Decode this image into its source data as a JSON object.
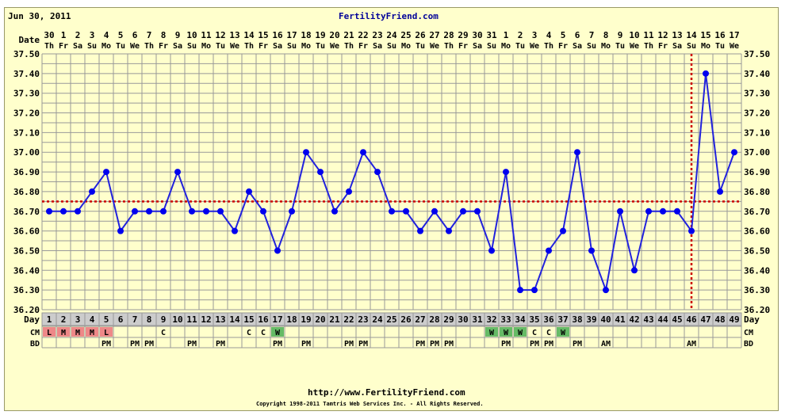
{
  "header": {
    "date": "Jun 30, 2011",
    "site": "FertilityFriend.com"
  },
  "footer": {
    "url": "http://www.FertilityFriend.com",
    "copyright": "Copyright 1998-2011 Tamtris Web Services Inc. - All Rights Reserved."
  },
  "labels": {
    "date": "Date",
    "day": "Day",
    "cm": "CM",
    "bd": "BD"
  },
  "colors": {
    "line": "#2222dd",
    "point": "#0000ee",
    "coverline": "#cc0000",
    "grid": "#999999",
    "background": "#ffffcc",
    "cm_menses": "#ee8888",
    "cm_watery": "#66bb66",
    "day_row": "#cccccc"
  },
  "chart_data": {
    "type": "line",
    "ylim": [
      36.2,
      37.5
    ],
    "yticks": [
      "37.50",
      "37.40",
      "37.30",
      "37.20",
      "37.10",
      "37.00",
      "36.90",
      "36.80",
      "36.70",
      "36.60",
      "36.50",
      "36.40",
      "36.30",
      "36.20"
    ],
    "grid": true,
    "dates": [
      "30",
      "1",
      "2",
      "3",
      "4",
      "5",
      "6",
      "7",
      "8",
      "9",
      "10",
      "11",
      "12",
      "13",
      "14",
      "15",
      "16",
      "17",
      "18",
      "19",
      "20",
      "21",
      "22",
      "23",
      "24",
      "25",
      "26",
      "27",
      "28",
      "29",
      "30",
      "31",
      "1",
      "2",
      "3",
      "4",
      "5",
      "6",
      "7",
      "8",
      "9",
      "10",
      "11",
      "12",
      "13",
      "14",
      "15",
      "16",
      "17"
    ],
    "weekdays": [
      "Th",
      "Fr",
      "Sa",
      "Su",
      "Mo",
      "Tu",
      "We",
      "Th",
      "Fr",
      "Sa",
      "Su",
      "Mo",
      "Tu",
      "We",
      "Th",
      "Fr",
      "Sa",
      "Su",
      "Mo",
      "Tu",
      "We",
      "Th",
      "Fr",
      "Sa",
      "Su",
      "Mo",
      "Tu",
      "We",
      "Th",
      "Fr",
      "Sa",
      "Su",
      "Mo",
      "Tu",
      "We",
      "Th",
      "Fr",
      "Sa",
      "Su",
      "Mo",
      "Tu",
      "We",
      "Th",
      "Fr",
      "Sa",
      "Su",
      "Mo",
      "Tu",
      "We"
    ],
    "days": [
      1,
      2,
      3,
      4,
      5,
      6,
      7,
      8,
      9,
      10,
      11,
      12,
      13,
      14,
      15,
      16,
      17,
      18,
      19,
      20,
      21,
      22,
      23,
      24,
      25,
      26,
      27,
      28,
      29,
      30,
      31,
      32,
      33,
      34,
      35,
      36,
      37,
      38,
      39,
      40,
      41,
      42,
      43,
      44,
      45,
      46,
      47,
      48,
      49
    ],
    "temps": [
      36.7,
      36.7,
      36.7,
      36.8,
      36.9,
      36.6,
      36.7,
      36.7,
      36.7,
      36.9,
      36.7,
      36.7,
      36.7,
      36.6,
      36.8,
      36.7,
      36.5,
      36.7,
      37.0,
      36.9,
      36.7,
      36.8,
      37.0,
      36.9,
      36.7,
      36.7,
      36.6,
      36.7,
      36.6,
      36.7,
      36.7,
      36.5,
      36.9,
      36.3,
      36.3,
      36.5,
      36.6,
      37.0,
      36.5,
      36.3,
      36.7,
      36.4,
      36.7,
      36.7,
      36.7,
      36.6,
      37.4,
      36.8,
      37.0
    ],
    "coverline": 36.75,
    "ovulation_day": 46,
    "cm": [
      "L",
      "M",
      "M",
      "M",
      "L",
      "",
      "",
      "",
      "C",
      "",
      "",
      "",
      "",
      "",
      "C",
      "C",
      "W",
      "",
      "",
      "",
      "",
      "",
      "",
      "",
      "",
      "",
      "",
      "",
      "",
      "",
      "",
      "W",
      "W",
      "W",
      "C",
      "C",
      "W",
      "",
      "",
      "",
      "",
      "",
      "",
      "",
      "",
      "",
      "",
      "",
      ""
    ],
    "bd": [
      "",
      "",
      "",
      "",
      "PM",
      "",
      "PM",
      "PM",
      "",
      "",
      "PM",
      "",
      "PM",
      "",
      "",
      "",
      "PM",
      "",
      "PM",
      "",
      "",
      "PM",
      "PM",
      "",
      "",
      "",
      "PM",
      "PM",
      "PM",
      "",
      "",
      "",
      "PM",
      "",
      "PM",
      "PM",
      "",
      "PM",
      "",
      "AM",
      "",
      "",
      "",
      "",
      "",
      "AM",
      "",
      "",
      ""
    ]
  }
}
